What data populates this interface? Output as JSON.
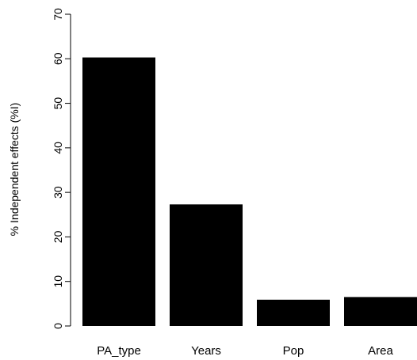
{
  "chart_data": {
    "type": "bar",
    "categories": [
      "PA_type",
      "Years",
      "Pop",
      "Area"
    ],
    "values": [
      60.3,
      27.3,
      5.9,
      6.5
    ],
    "title": "",
    "xlabel": "",
    "ylabel": "% Independent effects (%I)",
    "ylim": [
      0,
      70
    ],
    "yticks": [
      0,
      10,
      20,
      30,
      40,
      50,
      60,
      70
    ],
    "grid": false,
    "bar_color": "#000000"
  }
}
